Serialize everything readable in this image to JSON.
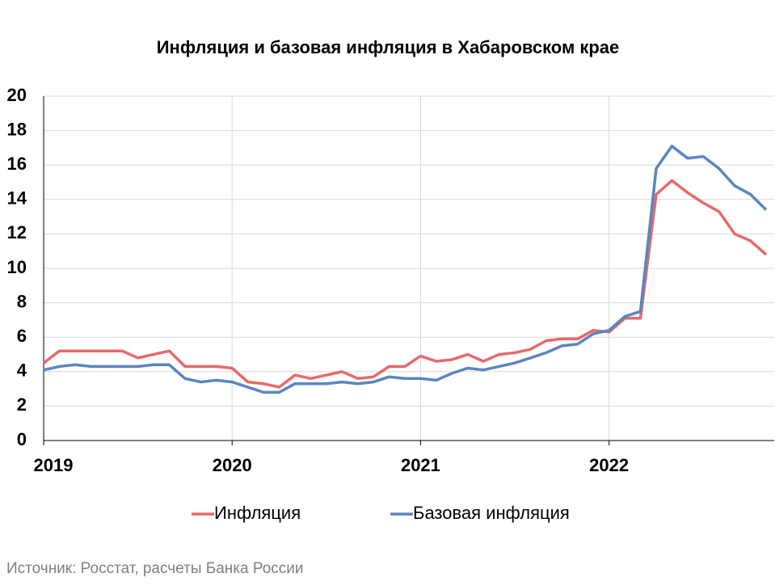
{
  "chart_data": {
    "type": "line",
    "title": "Инфляция и базовая инфляция в Хабаровском крае",
    "source": "Источник: Росстат, расчеты Банка России",
    "categories": [
      "2019",
      null,
      null,
      null,
      null,
      null,
      null,
      null,
      null,
      null,
      null,
      null,
      "2020",
      null,
      null,
      null,
      null,
      null,
      null,
      null,
      null,
      null,
      null,
      null,
      "2021",
      null,
      null,
      null,
      null,
      null,
      null,
      null,
      null,
      null,
      null,
      null,
      "2022",
      null,
      null,
      null,
      null,
      null,
      null,
      null,
      null,
      null,
      null
    ],
    "series": [
      {
        "name": "Инфляция",
        "color": "#e8696b",
        "values": [
          4.5,
          5.2,
          5.2,
          5.2,
          5.2,
          5.2,
          4.8,
          5.0,
          5.2,
          4.3,
          4.3,
          4.3,
          4.2,
          3.4,
          3.3,
          3.1,
          3.8,
          3.6,
          3.8,
          4.0,
          3.6,
          3.7,
          4.3,
          4.3,
          4.9,
          4.6,
          4.7,
          5.0,
          4.6,
          5.0,
          5.1,
          5.3,
          5.8,
          5.9,
          5.9,
          6.4,
          6.3,
          7.1,
          7.1,
          14.3,
          15.1,
          14.4,
          13.8,
          13.3,
          12.0,
          11.6,
          10.8
        ]
      },
      {
        "name": "Базовая инфляция",
        "color": "#5b86bf",
        "values": [
          4.1,
          4.3,
          4.4,
          4.3,
          4.3,
          4.3,
          4.3,
          4.4,
          4.4,
          3.6,
          3.4,
          3.5,
          3.4,
          3.1,
          2.8,
          2.8,
          3.3,
          3.3,
          3.3,
          3.4,
          3.3,
          3.4,
          3.7,
          3.6,
          3.6,
          3.5,
          3.9,
          4.2,
          4.1,
          4.3,
          4.5,
          4.8,
          5.1,
          5.5,
          5.6,
          6.2,
          6.4,
          7.2,
          7.5,
          15.8,
          17.1,
          16.4,
          16.5,
          15.8,
          14.8,
          14.3,
          13.4
        ]
      }
    ],
    "ylim": [
      0,
      20
    ],
    "yticks": [
      0,
      2,
      4,
      6,
      8,
      10,
      12,
      14,
      16,
      18,
      20
    ],
    "grid": true,
    "legend": "bottom"
  }
}
